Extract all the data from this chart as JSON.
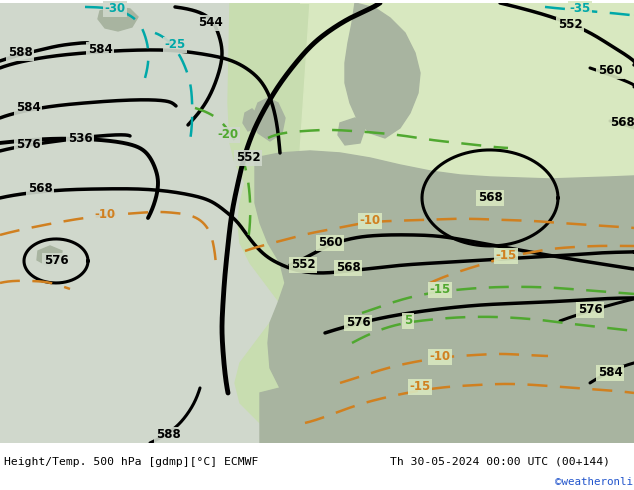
{
  "title_left": "Height/Temp. 500 hPa [gdmp][°C] ECMWF",
  "title_right": "Th 30-05-2024 00:00 UTC (00+144)",
  "credit": "©weatheronline.co.uk",
  "credit_color": "#2255cc",
  "bg_light_gray": "#d0d8cc",
  "bg_green": "#c8ddb0",
  "land_gray": "#a8b4a0",
  "sea_green": "#d8e8c0",
  "contour_black": "#000000",
  "temp_orange": "#d08020",
  "temp_cyan": "#00a8a8",
  "temp_green": "#50a830",
  "bottom_bar": "#ffffff"
}
